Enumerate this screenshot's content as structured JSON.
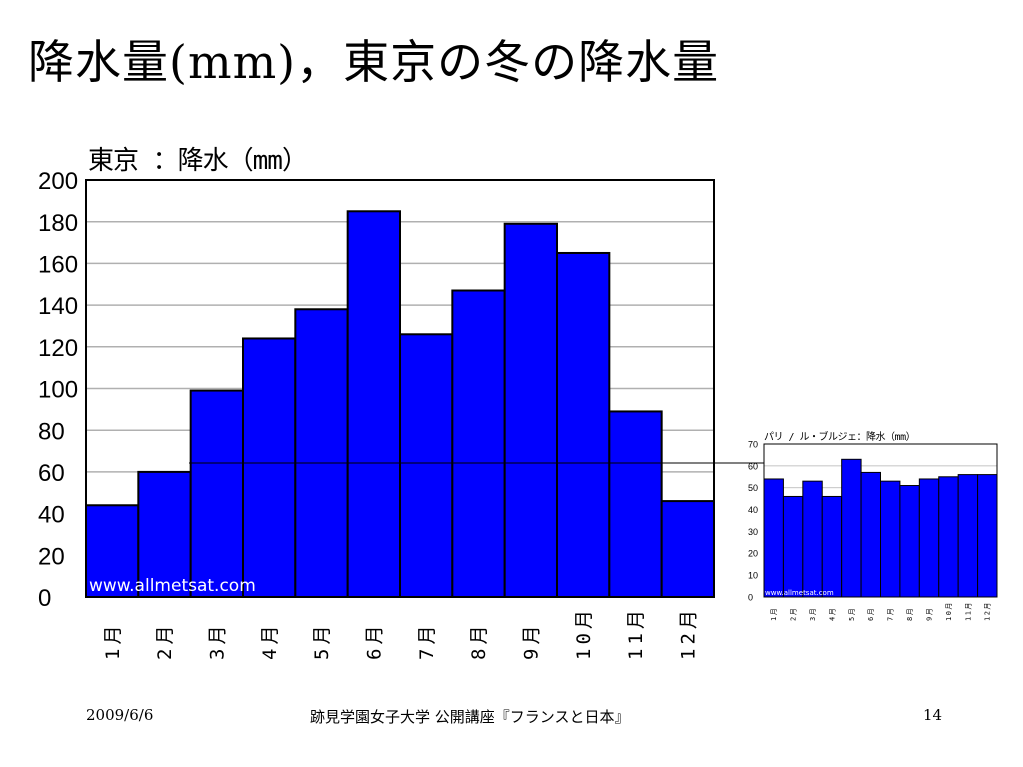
{
  "slide": {
    "title": "降水量(mm)，東京の冬の降水量",
    "footer_date": "2009/6/6",
    "footer_center": "跡見学園女子大学 公開講座『フランスと日本』",
    "page_number": "14"
  },
  "colors": {
    "bar": "#0000ff",
    "bar_edge": "#000000",
    "grid": "#b0b0b0",
    "connector": "#000000"
  },
  "chart_data": [
    {
      "type": "bar",
      "title": "東京 ：降水（mm）",
      "categories": [
        "1月",
        "2月",
        "3月",
        "4月",
        "5月",
        "6月",
        "7月",
        "8月",
        "9月",
        "10月",
        "11月",
        "12月"
      ],
      "values": [
        44,
        60,
        99,
        124,
        138,
        185,
        126,
        147,
        179,
        165,
        89,
        46
      ],
      "ylim": [
        0,
        200
      ],
      "yticks": [
        0,
        20,
        40,
        60,
        80,
        100,
        120,
        140,
        160,
        180,
        200
      ],
      "grid": true,
      "watermark": "www.allmetsat.com"
    },
    {
      "type": "bar",
      "title": "パリ / ル・ブルジェ：降水（mm）",
      "categories": [
        "1月",
        "2月",
        "3月",
        "4月",
        "5月",
        "6月",
        "7月",
        "8月",
        "9月",
        "10月",
        "11月",
        "12月"
      ],
      "values": [
        54,
        46,
        53,
        46,
        63,
        57,
        53,
        51,
        54,
        55,
        56,
        56
      ],
      "ylim": [
        0,
        70
      ],
      "yticks": [
        0,
        10,
        20,
        30,
        40,
        50,
        60,
        70
      ],
      "grid": true,
      "watermark": "www.allmetsat.com"
    }
  ]
}
